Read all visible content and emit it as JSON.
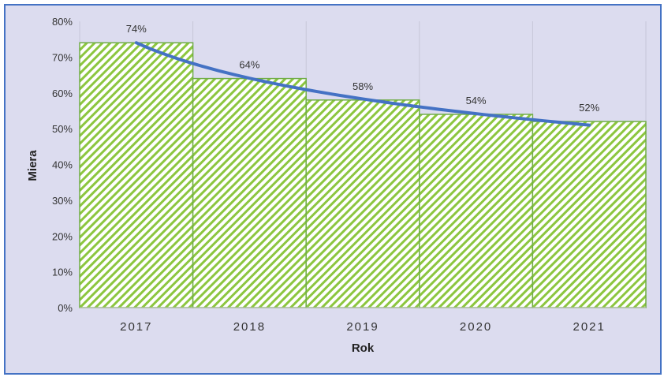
{
  "chart_data": {
    "type": "bar",
    "categories": [
      "2017",
      "2018",
      "2019",
      "2020",
      "2021"
    ],
    "values": [
      74,
      64,
      58,
      54,
      52
    ],
    "value_labels": [
      "74%",
      "64%",
      "58%",
      "54%",
      "52%"
    ],
    "trendline": {
      "type": "logarithmic",
      "from": 74,
      "to": 51
    },
    "title": "",
    "xlabel": "Rok",
    "ylabel": "Miera",
    "ylim": [
      0,
      80
    ],
    "yticks": [
      0,
      10,
      20,
      30,
      40,
      50,
      60,
      70,
      80
    ],
    "ytick_labels": [
      "0%",
      "10%",
      "20%",
      "30%",
      "40%",
      "50%",
      "60%",
      "70%",
      "80%"
    ],
    "grid": "vertical",
    "legend": "none",
    "colors": {
      "plot_background": "#dcdcef",
      "bar_fill": "#ffffff",
      "bar_hatch": "#8cc63f",
      "bar_border": "#70ad47",
      "trendline": "#4472c4",
      "frame_border": "#4472c4"
    }
  }
}
